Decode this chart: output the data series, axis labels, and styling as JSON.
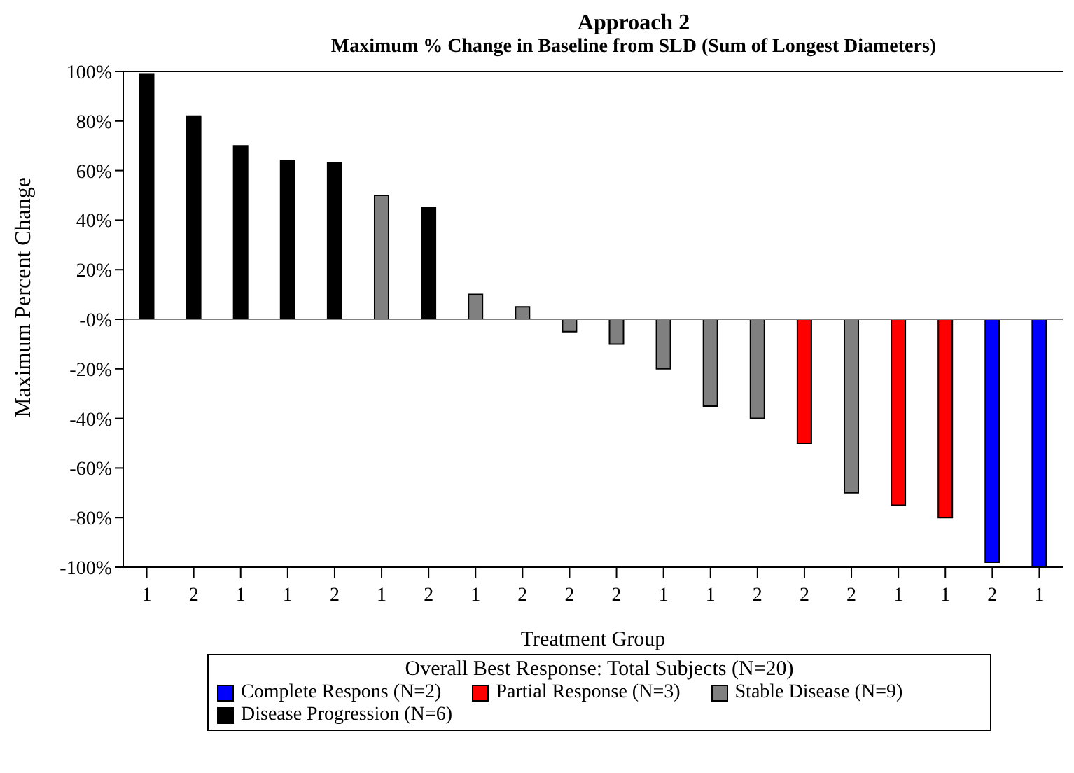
{
  "chart_data": {
    "type": "bar",
    "title": "Approach 2",
    "subtitle": "Maximum % Change in Baseline from SLD (Sum of Longest Diameters)",
    "xlabel": "Treatment Group",
    "ylabel": "Maximum Percent Change",
    "legend_title": "Overall Best Response: Total Subjects (N=20)",
    "categories": [
      "1",
      "2",
      "1",
      "1",
      "2",
      "1",
      "2",
      "1",
      "2",
      "2",
      "2",
      "1",
      "1",
      "2",
      "2",
      "2",
      "1",
      "1",
      "2",
      "1"
    ],
    "stacked": true,
    "series": [
      {
        "name": "Complete Respons (N=2)",
        "color": "#0000ff",
        "values": [
          null,
          null,
          null,
          null,
          null,
          null,
          null,
          null,
          null,
          null,
          null,
          null,
          null,
          null,
          null,
          null,
          null,
          null,
          -98,
          -100
        ]
      },
      {
        "name": "Partial Response (N=3)",
        "color": "#ff0000",
        "values": [
          null,
          null,
          null,
          null,
          null,
          null,
          null,
          null,
          null,
          null,
          null,
          null,
          null,
          null,
          -50,
          null,
          -75,
          -80,
          null,
          null
        ]
      },
      {
        "name": "Stable Disease (N=9)",
        "color": "#808080",
        "values": [
          null,
          null,
          null,
          null,
          null,
          50,
          null,
          10,
          5,
          -5,
          -10,
          -20,
          -35,
          -40,
          null,
          -70,
          null,
          null,
          null,
          null
        ]
      },
      {
        "name": "Disease Progression (N=6)",
        "color": "#000000",
        "values": [
          99,
          82,
          70,
          64,
          63,
          null,
          45,
          null,
          null,
          null,
          null,
          null,
          null,
          null,
          null,
          null,
          null,
          null,
          null,
          null
        ]
      }
    ],
    "ylim": [
      -100,
      100
    ],
    "yticks": [
      {
        "value": -100,
        "label": "-100%"
      },
      {
        "value": -80,
        "label": "-80%"
      },
      {
        "value": -60,
        "label": "-60%"
      },
      {
        "value": -40,
        "label": "-40%"
      },
      {
        "value": -20,
        "label": "-20%"
      },
      {
        "value": 0,
        "label": "-0%"
      },
      {
        "value": 20,
        "label": "20%"
      },
      {
        "value": 40,
        "label": "40%"
      },
      {
        "value": 60,
        "label": "60%"
      },
      {
        "value": 80,
        "label": "80%"
      },
      {
        "value": 100,
        "label": "100%"
      }
    ],
    "ref_lines": [
      {
        "axis": "y",
        "value": 0,
        "color": "#808080"
      }
    ],
    "grid": false,
    "legend": "bottom"
  }
}
